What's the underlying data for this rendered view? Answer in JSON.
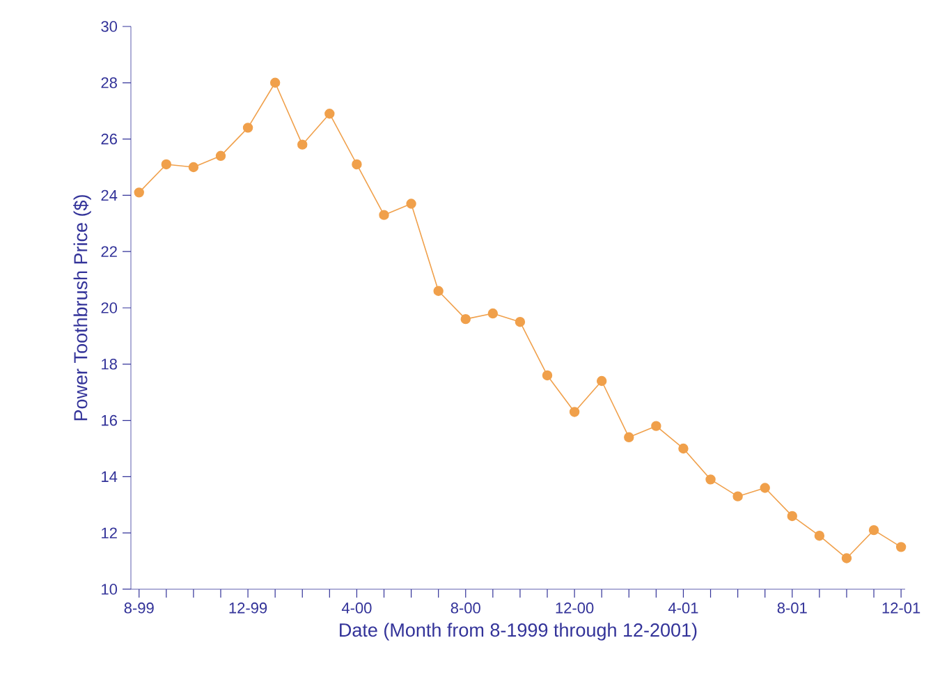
{
  "chart_data": {
    "type": "line",
    "xlabel": "Date (Month from 8-1999 through 12-2001)",
    "ylabel": "Power Toothbrush Price ($)",
    "categories": [
      "8-99",
      null,
      null,
      null,
      "12-99",
      null,
      null,
      null,
      "4-00",
      null,
      null,
      null,
      "8-00",
      null,
      null,
      null,
      "12-00",
      null,
      null,
      null,
      "4-01",
      null,
      null,
      null,
      "8-01",
      null,
      null,
      null,
      "12-01"
    ],
    "series": [
      {
        "color": "#f0a04b",
        "values": [
          24.1,
          25.1,
          25.0,
          25.4,
          26.4,
          28.0,
          25.8,
          26.9,
          25.1,
          23.3,
          23.7,
          20.6,
          19.6,
          19.8,
          19.5,
          17.6,
          16.3,
          17.4,
          15.4,
          15.8,
          15.0,
          13.9,
          13.3,
          13.6,
          12.6,
          11.9,
          11.1,
          12.1,
          11.5
        ]
      }
    ],
    "ylim": [
      10,
      30
    ],
    "yticks": [
      10,
      12,
      14,
      16,
      18,
      20,
      22,
      24,
      26,
      28,
      30
    ],
    "marker": "circle",
    "line_style": "solid"
  }
}
